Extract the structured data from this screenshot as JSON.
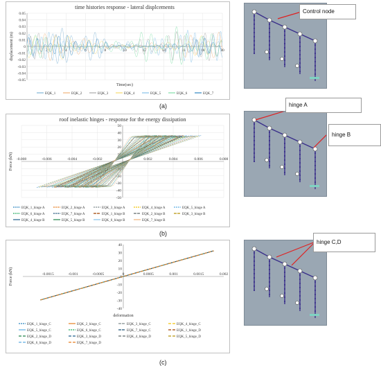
{
  "panels": {
    "a": {
      "caption": "(a)",
      "callout": "Control node"
    },
    "b": {
      "caption": "(b)",
      "callout_a": "hinge A",
      "callout_b": "hinge B"
    },
    "c": {
      "caption": "(c)",
      "callout": "hinge C,D"
    }
  },
  "chart_data": [
    {
      "type": "line",
      "title": "time histories response   - lateral displcements",
      "xlabel": "Time(sec)",
      "ylabel": "displacement (m)",
      "xlim": [
        0,
        20
      ],
      "ylim": [
        -0.05,
        0.05
      ],
      "x_ticks": [
        2,
        4,
        6,
        8,
        10,
        12,
        14,
        16,
        18,
        20
      ],
      "y_ticks": [
        0.05,
        0.04,
        0.03,
        0.02,
        0.01,
        0,
        -0.01,
        -0.02,
        -0.03,
        -0.04,
        -0.05
      ],
      "grid": true,
      "legend_position": "bottom",
      "series": [
        {
          "name": "EQK_1",
          "color": "#7fb3d5",
          "amp": 0.028,
          "freq": 3.1,
          "phase": 0.2
        },
        {
          "name": "EQK_2",
          "color": "#f0b27a",
          "amp": 0.022,
          "freq": 2.6,
          "phase": 1.1
        },
        {
          "name": "EQK_3",
          "color": "#a9a9a9",
          "amp": 0.024,
          "freq": 3.6,
          "phase": 2.0
        },
        {
          "name": "EQK_4",
          "color": "#f7dc6f",
          "amp": 0.02,
          "freq": 2.2,
          "phase": 0.7
        },
        {
          "name": "EQK_5",
          "color": "#85c1e9",
          "amp": 0.026,
          "freq": 4.0,
          "phase": 1.6
        },
        {
          "name": "EQK_6",
          "color": "#82e0aa",
          "amp": 0.03,
          "freq": 2.9,
          "phase": 2.6
        },
        {
          "name": "EQK_7",
          "color": "#2e86c1",
          "amp": 0.018,
          "freq": 3.4,
          "phase": 0.4
        }
      ]
    },
    {
      "type": "line",
      "title": "roof inelastic hinges   - response for the energy dissipation",
      "xlabel": "",
      "ylabel": "Force (kN)",
      "xlim": [
        -0.008,
        0.008
      ],
      "ylim": [
        -50,
        50
      ],
      "x_ticks": [
        -0.008,
        -0.006,
        -0.004,
        -0.002,
        0,
        0.002,
        0.004,
        0.006,
        0.008
      ],
      "x_tick_labels": [
        "-0.008",
        "-0.006",
        "-0.004",
        "-0.002",
        "",
        "0.002",
        "0.004",
        "0.006",
        "0.008"
      ],
      "y_ticks": [
        50,
        40,
        30,
        20,
        10,
        -10,
        -20,
        -30,
        -40,
        -50
      ],
      "grid": true,
      "legend_position": "bottom",
      "series": [
        {
          "name": "EQK_1_hinge A",
          "color": "#2e86c1",
          "dash": "2,1",
          "ymax": 36,
          "xmin": -0.0068,
          "xmax": 0.0062
        },
        {
          "name": "EQK_2_hinge A",
          "color": "#e67e22",
          "dash": "2,1",
          "ymax": 35,
          "xmin": -0.0062,
          "xmax": 0.0056
        },
        {
          "name": "EQK_3_hinge A",
          "color": "#7f8c8d",
          "dash": "2,1",
          "ymax": 34,
          "xmin": -0.0058,
          "xmax": 0.0052
        },
        {
          "name": "EQK_4_hinge A",
          "color": "#f1c40f",
          "dash": "2,1",
          "ymax": 35,
          "xmin": -0.0066,
          "xmax": 0.006
        },
        {
          "name": "EQK_5_hinge A",
          "color": "#5dade2",
          "dash": "2,1",
          "ymax": 36,
          "xmin": -0.006,
          "xmax": 0.0055
        },
        {
          "name": "EQK_6_hinge A",
          "color": "#27ae60",
          "dash": "2,1",
          "ymax": 34,
          "xmin": -0.0056,
          "xmax": 0.005
        },
        {
          "name": "EQK_7_hinge A",
          "color": "#1a5276",
          "dash": "2,1",
          "ymax": 35,
          "xmin": -0.0064,
          "xmax": 0.0058
        },
        {
          "name": "EQK_1_hinge B",
          "color": "#a04000",
          "dash": "4,1",
          "ymax": 36,
          "xmin": -0.0054,
          "xmax": 0.0048
        },
        {
          "name": "EQK_2_hinge B",
          "color": "#616a6b",
          "dash": "4,1",
          "ymax": 35,
          "xmin": -0.005,
          "xmax": 0.0046
        },
        {
          "name": "EQK_3_hinge B",
          "color": "#b7950b",
          "dash": "4,1",
          "ymax": 34,
          "xmin": -0.0048,
          "xmax": 0.0044
        },
        {
          "name": "EQK_4_hinge B",
          "color": "#21618c",
          "dash": "",
          "ymax": 35,
          "xmin": -0.0052,
          "xmax": 0.0047
        },
        {
          "name": "EQK_5_hinge B",
          "color": "#1e8449",
          "dash": "",
          "ymax": 36,
          "xmin": -0.0046,
          "xmax": 0.0042
        },
        {
          "name": "EQK_6_hinge B",
          "color": "#85c1e9",
          "dash": "",
          "ymax": 34,
          "xmin": -0.0044,
          "xmax": 0.004
        },
        {
          "name": "EQK_7_hinge B",
          "color": "#f0b27a",
          "dash": "",
          "ymax": 35,
          "xmin": -0.0042,
          "xmax": 0.0038
        }
      ]
    },
    {
      "type": "line",
      "title": "",
      "xlabel": "deformation",
      "ylabel": "Force (kN)",
      "xlim": [
        -0.002,
        0.002
      ],
      "ylim": [
        -40,
        40
      ],
      "x_ticks": [
        -0.0015,
        -0.001,
        -0.0005,
        0,
        0.0005,
        0.001,
        0.0015,
        0.002
      ],
      "x_tick_labels": [
        "-0.0015",
        "-0.001",
        "-0.0005",
        "0",
        "0.0005",
        "0.001",
        "0.0015",
        "0.002"
      ],
      "y_ticks": [
        40,
        30,
        20,
        10,
        0,
        -10,
        -20,
        -30,
        -40
      ],
      "grid": false,
      "legend_position": "bottom",
      "series": [
        {
          "name": "EQK_1_hinge_C",
          "color": "#2e86c1",
          "dash": "2,1",
          "x": [
            -0.00165,
            0.0018
          ],
          "y": [
            -29.5,
            32.2
          ]
        },
        {
          "name": "EQK_2_hinge_C",
          "color": "#e67e22",
          "dash": "",
          "x": [
            -0.00165,
            0.0018
          ],
          "y": [
            -29.5,
            32.2
          ]
        },
        {
          "name": "EQK_3_hinge_C",
          "color": "#7f8c8d",
          "dash": "4,1",
          "x": [
            -0.00165,
            0.0018
          ],
          "y": [
            -29.5,
            32.2
          ]
        },
        {
          "name": "EQK_4_hinge_C",
          "color": "#f1c40f",
          "dash": "4,2",
          "x": [
            -0.00165,
            0.0018
          ],
          "y": [
            -29.5,
            32.2
          ]
        },
        {
          "name": "EQK_5_hinge_C",
          "color": "#5dade2",
          "dash": "",
          "x": [
            -0.00165,
            0.0018
          ],
          "y": [
            -29.5,
            32.2
          ]
        },
        {
          "name": "EQK_6_hinge_C",
          "color": "#27ae60",
          "dash": "2,1",
          "x": [
            -0.00165,
            0.0018
          ],
          "y": [
            -29.5,
            32.2
          ]
        },
        {
          "name": "EQK_7_hinge_C",
          "color": "#1a5276",
          "dash": "4,1",
          "x": [
            -0.00165,
            0.0018
          ],
          "y": [
            -29.5,
            32.2
          ]
        },
        {
          "name": "EQK_1_hinge_D",
          "color": "#a04000",
          "dash": "4,2",
          "x": [
            -0.00165,
            0.0018
          ],
          "y": [
            -29.5,
            32.2
          ]
        },
        {
          "name": "EQK_2_hinge_D",
          "color": "#1e8449",
          "dash": "4,2",
          "x": [
            -0.00165,
            0.0018
          ],
          "y": [
            -29.5,
            32.2
          ]
        },
        {
          "name": "EQK_3_hinge_D",
          "color": "#21618c",
          "dash": "4,2",
          "x": [
            -0.00165,
            0.0018
          ],
          "y": [
            -29.5,
            32.2
          ]
        },
        {
          "name": "EQK_4_hinge_D",
          "color": "#616a6b",
          "dash": "4,2",
          "x": [
            -0.00165,
            0.0018
          ],
          "y": [
            -29.5,
            32.2
          ]
        },
        {
          "name": "EQK_5_hinge_D",
          "color": "#b7950b",
          "dash": "4,2",
          "x": [
            -0.00165,
            0.0018
          ],
          "y": [
            -29.5,
            32.2
          ]
        },
        {
          "name": "EQK_6_hinge_D",
          "color": "#5dade2",
          "dash": "4,2",
          "x": [
            -0.00165,
            0.0018
          ],
          "y": [
            -29.5,
            32.2
          ]
        },
        {
          "name": "EQK_7_hinge_D",
          "color": "#e67e22",
          "dash": "4,2",
          "x": [
            -0.00165,
            0.0018
          ],
          "y": [
            -29.5,
            32.2
          ]
        }
      ]
    }
  ]
}
